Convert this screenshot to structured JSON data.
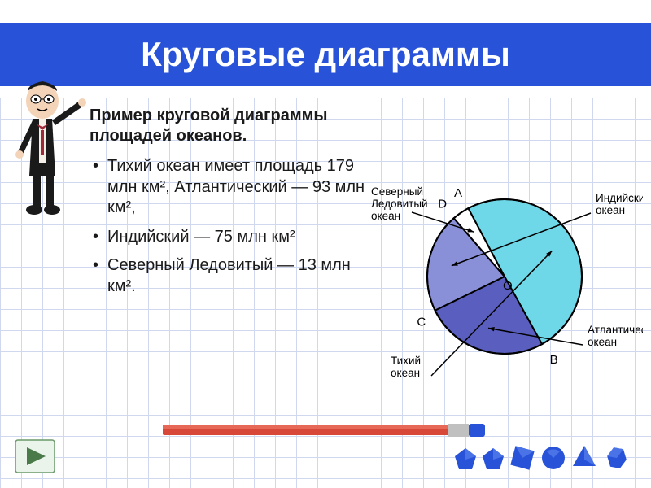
{
  "title": "Круговые диаграммы",
  "subtitle": "Пример  круговой диаграммы площадей океанов.",
  "bullets": [
    "Тихий океан имеет площадь 179 млн км², Атлантический — 93 млн км²,",
    "Индийский — 75 млн км²",
    " Северный Ледовитый — 13 млн км²."
  ],
  "chart": {
    "type": "pie",
    "center_label": "O",
    "point_labels": [
      "A",
      "B",
      "C",
      "D"
    ],
    "slices": [
      {
        "name": "Тихий океан",
        "value": 179,
        "color": "#6fd8e8",
        "label": "Тихий\nокеан"
      },
      {
        "name": "Атлантический океан",
        "value": 93,
        "color": "#5a5fbf",
        "label": "Атлантический\nокеан"
      },
      {
        "name": "Индийский океан",
        "value": 75,
        "color": "#8a90d8",
        "label": "Индийский\nокеан"
      },
      {
        "name": "Северный Ледовитый океан",
        "value": 13,
        "color": "#ffffff",
        "label": "Северный\nЛедовитый\nокеан"
      }
    ],
    "outline_color": "#000000",
    "radius": 95
  },
  "colors": {
    "title_bg": "#2853d8",
    "title_text": "#ffffff",
    "grid": "#d0d8f0",
    "nav_btn": "#4a7a4a"
  }
}
